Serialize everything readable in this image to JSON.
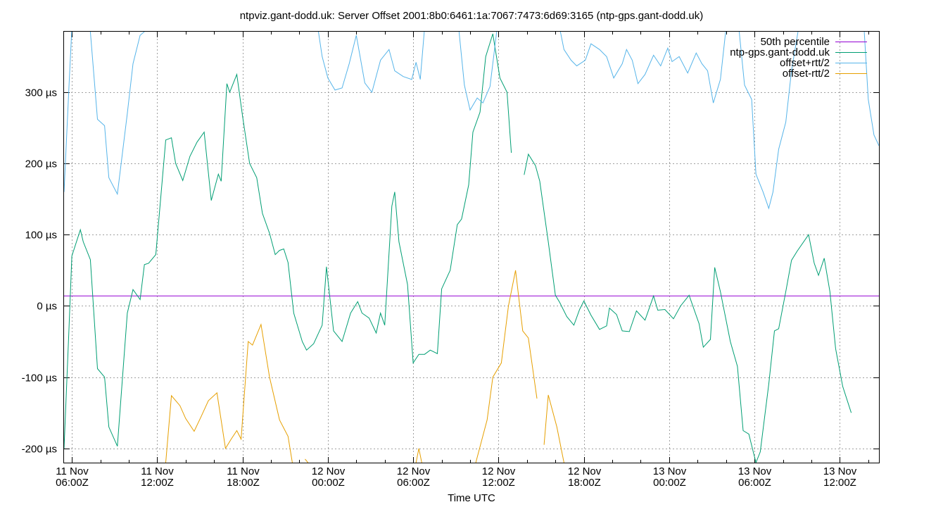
{
  "chart_data": {
    "type": "line",
    "title": "ntpviz.gant-dodd.uk: Server Offset 2001:8b0:6461:1a:7067:7473:6d69:3165 (ntp-gps.gant-dodd.uk)",
    "xlabel": "Time UTC",
    "ylabel": "",
    "x_unit": "hours since 11 Nov 00:00Z",
    "xlim": [
      5.45,
      62.75
    ],
    "ylim": [
      -220,
      385
    ],
    "grid": true,
    "legend_position": "top-right",
    "y_ticks": [
      {
        "value": 300,
        "label": "300 µs"
      },
      {
        "value": 200,
        "label": "200 µs"
      },
      {
        "value": 100,
        "label": "100 µs"
      },
      {
        "value": 0,
        "label": "0 µs"
      },
      {
        "value": -100,
        "label": "-100 µs"
      },
      {
        "value": -200,
        "label": "-200 µs"
      }
    ],
    "x_ticks": [
      {
        "value": 6,
        "line1": "11 Nov",
        "line2": "06:00Z"
      },
      {
        "value": 12,
        "line1": "11 Nov",
        "line2": "12:00Z"
      },
      {
        "value": 18,
        "line1": "11 Nov",
        "line2": "18:00Z"
      },
      {
        "value": 24,
        "line1": "12 Nov",
        "line2": "00:00Z"
      },
      {
        "value": 30,
        "line1": "12 Nov",
        "line2": "06:00Z"
      },
      {
        "value": 36,
        "line1": "12 Nov",
        "line2": "12:00Z"
      },
      {
        "value": 42,
        "line1": "12 Nov",
        "line2": "18:00Z"
      },
      {
        "value": 48,
        "line1": "13 Nov",
        "line2": "00:00Z"
      },
      {
        "value": 54,
        "line1": "13 Nov",
        "line2": "06:00Z"
      },
      {
        "value": 60,
        "line1": "13 Nov",
        "line2": "12:00Z"
      }
    ],
    "series": [
      {
        "name": "50th percentile",
        "color": "#9400d3",
        "segments": [
          [
            [
              5.45,
              14
            ],
            [
              62.75,
              14
            ]
          ]
        ]
      },
      {
        "name": "ntp-gps.gant-dodd.uk",
        "color": "#009e73",
        "segments": [
          [
            [
              5.45,
              -200
            ],
            [
              5.8,
              -30
            ],
            [
              6.0,
              70
            ],
            [
              6.6,
              107
            ],
            [
              6.8,
              90
            ],
            [
              7.3,
              65
            ],
            [
              7.8,
              -88
            ],
            [
              8.3,
              -100
            ],
            [
              8.6,
              -170
            ],
            [
              9.2,
              -197
            ],
            [
              9.9,
              -10
            ],
            [
              10.3,
              23
            ],
            [
              10.8,
              9
            ],
            [
              11.1,
              58
            ],
            [
              11.4,
              60
            ],
            [
              11.9,
              72
            ],
            [
              12.6,
              233
            ],
            [
              13.0,
              236
            ],
            [
              13.3,
              200
            ],
            [
              13.8,
              176
            ],
            [
              14.3,
              210
            ],
            [
              14.8,
              230
            ],
            [
              15.3,
              244
            ],
            [
              15.8,
              148
            ],
            [
              16.3,
              185
            ],
            [
              16.5,
              175
            ],
            [
              16.9,
              312
            ],
            [
              17.1,
              300
            ],
            [
              17.6,
              325
            ],
            [
              18.0,
              267
            ],
            [
              18.5,
              200
            ],
            [
              19.0,
              180
            ],
            [
              19.4,
              130
            ],
            [
              19.9,
              102
            ],
            [
              20.3,
              72
            ],
            [
              20.6,
              78
            ],
            [
              20.9,
              80
            ],
            [
              21.2,
              61
            ],
            [
              21.6,
              -10
            ],
            [
              22.2,
              -50
            ],
            [
              22.5,
              -62
            ],
            [
              23.0,
              -53
            ],
            [
              23.6,
              -27
            ],
            [
              23.9,
              55
            ],
            [
              24.4,
              -35
            ],
            [
              25.0,
              -50
            ],
            [
              25.6,
              -10
            ],
            [
              26.1,
              6
            ],
            [
              26.4,
              -10
            ],
            [
              26.9,
              -17
            ],
            [
              27.4,
              -38
            ],
            [
              27.7,
              -10
            ],
            [
              28.0,
              -27
            ],
            [
              28.5,
              140
            ],
            [
              28.7,
              160
            ],
            [
              29.0,
              90
            ],
            [
              29.6,
              30
            ],
            [
              30.0,
              -80
            ],
            [
              30.4,
              -68
            ],
            [
              30.8,
              -68
            ],
            [
              31.2,
              -62
            ],
            [
              31.7,
              -67
            ],
            [
              32.0,
              24
            ],
            [
              32.6,
              50
            ],
            [
              33.1,
              114
            ],
            [
              33.4,
              122
            ],
            [
              33.9,
              170
            ],
            [
              34.2,
              244
            ],
            [
              34.7,
              272
            ],
            [
              35.1,
              350
            ],
            [
              35.6,
              382
            ],
            [
              36.1,
              320
            ],
            [
              36.6,
              300
            ],
            [
              36.9,
              215
            ]
          ],
          [
            [
              37.8,
              184
            ],
            [
              38.1,
              213
            ],
            [
              38.6,
              197
            ],
            [
              38.9,
              175
            ],
            [
              39.5,
              90
            ],
            [
              40.0,
              15
            ],
            [
              40.3,
              5
            ],
            [
              40.8,
              -15
            ],
            [
              41.3,
              -27
            ],
            [
              41.7,
              -5
            ],
            [
              42.0,
              7
            ],
            [
              42.5,
              -13
            ],
            [
              43.1,
              -33
            ],
            [
              43.6,
              -28
            ],
            [
              43.8,
              -3
            ],
            [
              44.3,
              -12
            ],
            [
              44.7,
              -35
            ],
            [
              45.2,
              -36
            ],
            [
              45.7,
              -7
            ],
            [
              46.3,
              -20
            ],
            [
              46.9,
              14
            ],
            [
              47.2,
              -6
            ],
            [
              47.7,
              -5
            ],
            [
              48.3,
              -18
            ],
            [
              48.8,
              0
            ],
            [
              49.4,
              15
            ],
            [
              50.1,
              -25
            ],
            [
              50.4,
              -58
            ],
            [
              50.9,
              -47
            ],
            [
              51.2,
              54
            ],
            [
              51.6,
              20
            ],
            [
              52.3,
              -50
            ],
            [
              52.8,
              -85
            ],
            [
              53.2,
              -175
            ],
            [
              53.6,
              -180
            ],
            [
              54.1,
              -220
            ],
            [
              54.4,
              -205
            ],
            [
              55.0,
              -110
            ],
            [
              55.4,
              -35
            ],
            [
              55.7,
              -32
            ],
            [
              56.2,
              20
            ],
            [
              56.6,
              64
            ],
            [
              57.0,
              77
            ],
            [
              57.8,
              100
            ],
            [
              58.2,
              60
            ],
            [
              58.5,
              43
            ],
            [
              58.9,
              67
            ],
            [
              59.3,
              20
            ],
            [
              59.7,
              -60
            ],
            [
              60.2,
              -113
            ],
            [
              60.8,
              -150
            ]
          ]
        ]
      },
      {
        "name": "offset+rtt/2",
        "color": "#56b4e9",
        "segments": [
          [
            [
              5.45,
              160
            ],
            [
              5.8,
              310
            ],
            [
              6.0,
              390
            ]
          ],
          [
            [
              7.1,
              390
            ],
            [
              7.3,
              385
            ],
            [
              7.8,
              262
            ],
            [
              8.3,
              253
            ],
            [
              8.6,
              180
            ],
            [
              9.2,
              157
            ],
            [
              9.9,
              270
            ],
            [
              10.3,
              340
            ],
            [
              10.8,
              380
            ],
            [
              11.1,
              385
            ]
          ],
          [
            [
              23.3,
              390
            ],
            [
              23.6,
              350
            ],
            [
              24.0,
              320
            ],
            [
              24.5,
              303
            ],
            [
              25.0,
              306
            ],
            [
              25.5,
              340
            ],
            [
              26.0,
              380
            ],
            [
              26.6,
              313
            ],
            [
              27.1,
              300
            ],
            [
              27.7,
              345
            ],
            [
              28.3,
              360
            ],
            [
              28.7,
              330
            ],
            [
              29.3,
              322
            ],
            [
              29.9,
              318
            ],
            [
              30.2,
              342
            ],
            [
              30.5,
              318
            ],
            [
              30.8,
              390
            ]
          ],
          [
            [
              33.2,
              390
            ],
            [
              33.6,
              310
            ],
            [
              34.0,
              275
            ],
            [
              34.5,
              292
            ],
            [
              34.9,
              285
            ],
            [
              35.4,
              308
            ],
            [
              35.9,
              390
            ]
          ],
          [
            [
              40.3,
              390
            ],
            [
              40.6,
              360
            ],
            [
              41.1,
              345
            ],
            [
              41.5,
              337
            ],
            [
              42.1,
              345
            ],
            [
              42.5,
              368
            ],
            [
              43.1,
              360
            ],
            [
              43.6,
              350
            ],
            [
              44.1,
              320
            ],
            [
              44.7,
              340
            ],
            [
              45.0,
              360
            ],
            [
              45.4,
              345
            ],
            [
              45.8,
              312
            ],
            [
              46.3,
              325
            ],
            [
              46.9,
              352
            ],
            [
              47.4,
              337
            ],
            [
              47.9,
              362
            ],
            [
              48.2,
              343
            ],
            [
              48.7,
              350
            ],
            [
              49.3,
              327
            ],
            [
              49.9,
              355
            ],
            [
              50.3,
              340
            ],
            [
              50.7,
              330
            ],
            [
              51.1,
              285
            ],
            [
              51.6,
              318
            ],
            [
              52.0,
              390
            ]
          ],
          [
            [
              52.9,
              390
            ],
            [
              53.3,
              310
            ],
            [
              53.8,
              290
            ],
            [
              54.1,
              185
            ],
            [
              54.6,
              160
            ],
            [
              55.0,
              137
            ],
            [
              55.3,
              160
            ],
            [
              55.7,
              220
            ],
            [
              56.2,
              258
            ],
            [
              56.6,
              330
            ],
            [
              57.1,
              390
            ]
          ],
          [
            [
              61.7,
              390
            ],
            [
              62.0,
              290
            ],
            [
              62.4,
              240
            ],
            [
              62.75,
              225
            ]
          ]
        ]
      },
      {
        "name": "offset-rtt/2",
        "color": "#e69f00",
        "segments": [
          [
            [
              12.6,
              -220
            ],
            [
              13.0,
              -126
            ],
            [
              13.6,
              -140
            ],
            [
              14.0,
              -158
            ],
            [
              14.6,
              -176
            ],
            [
              15.1,
              -155
            ],
            [
              15.6,
              -133
            ],
            [
              16.2,
              -122
            ],
            [
              16.8,
              -200
            ],
            [
              17.2,
              -187
            ],
            [
              17.6,
              -175
            ],
            [
              17.9,
              -187
            ],
            [
              18.4,
              -50
            ],
            [
              18.7,
              -55
            ],
            [
              19.3,
              -26
            ],
            [
              19.9,
              -100
            ],
            [
              20.6,
              -160
            ],
            [
              21.2,
              -183
            ],
            [
              21.5,
              -220
            ]
          ],
          [
            [
              22.4,
              -215
            ],
            [
              22.6,
              -220
            ]
          ],
          [
            [
              30.2,
              -220
            ],
            [
              30.4,
              -200
            ],
            [
              30.6,
              -220
            ]
          ],
          [
            [
              34.4,
              -220
            ],
            [
              35.2,
              -160
            ],
            [
              35.6,
              -100
            ],
            [
              36.2,
              -80
            ],
            [
              36.7,
              0
            ],
            [
              37.2,
              50
            ],
            [
              37.7,
              -35
            ],
            [
              38.1,
              -45
            ],
            [
              38.7,
              -130
            ]
          ],
          [
            [
              39.2,
              -195
            ],
            [
              39.5,
              -125
            ],
            [
              40.1,
              -170
            ],
            [
              40.6,
              -220
            ]
          ]
        ]
      }
    ]
  }
}
